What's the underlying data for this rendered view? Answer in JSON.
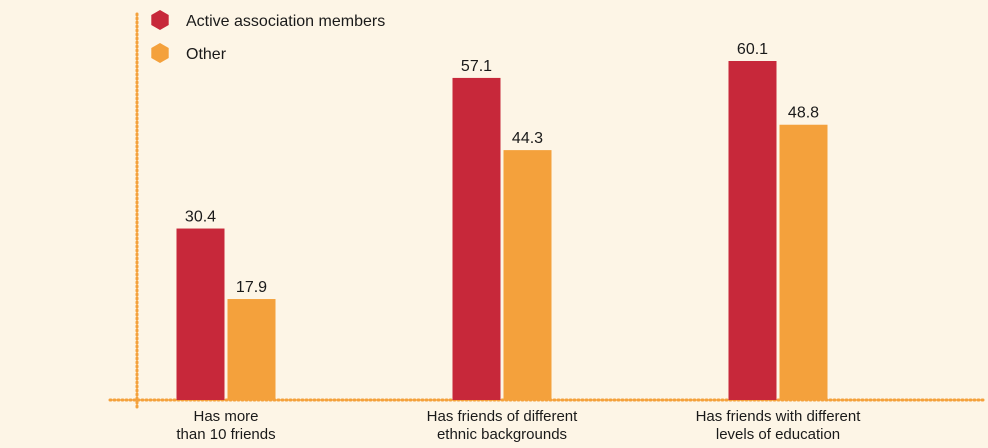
{
  "chart_data": {
    "type": "bar",
    "categories": [
      "Has more\nthan 10  friends",
      "Has friends of different\nethnic backgrounds",
      "Has friends with different\nlevels of education"
    ],
    "series": [
      {
        "name": "Active association members",
        "color": "#c7283a",
        "values": [
          30.4,
          57.1,
          60.1
        ]
      },
      {
        "name": "Other",
        "color": "#f4a13c",
        "values": [
          17.9,
          44.3,
          48.8
        ]
      }
    ]
  }
}
